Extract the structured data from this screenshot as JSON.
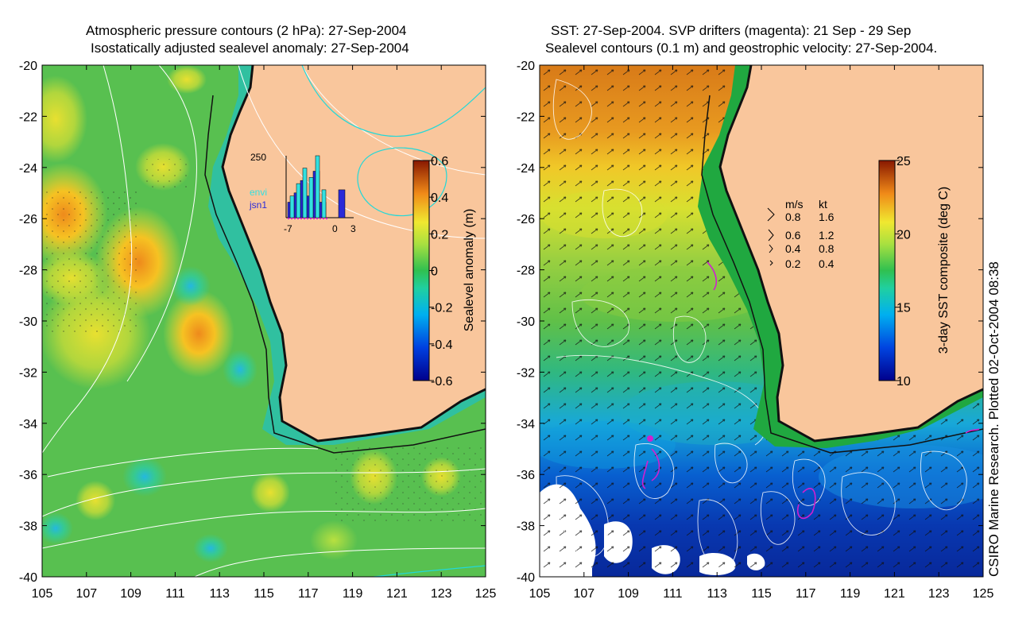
{
  "left_panel": {
    "title_line1": "Atmospheric pressure contours (2 hPa): 27-Sep-2004",
    "title_line2": "Isostatically adjusted sealevel anomaly: 27-Sep-2004",
    "colorbar": {
      "label": "Sealevel anomaly (m)",
      "ticks": [
        "0.6",
        "0.4",
        "0.2",
        "0",
        "-0.2",
        "-0.4",
        "-0.6"
      ]
    },
    "histogram": {
      "ymax_label": "250",
      "x_ticks": [
        "-7",
        "0",
        "3"
      ],
      "legend": [
        "envi",
        "jsn1"
      ],
      "legend_colors": [
        "#33e0e0",
        "#2a2ad8"
      ],
      "bins_cyan": [
        0.35,
        0.55,
        0.8,
        0.65,
        1.0,
        0.45
      ],
      "bins_blue": [
        0.25,
        0.4,
        0.6,
        0.35,
        0.75,
        0.25,
        0,
        0,
        0.45
      ]
    }
  },
  "right_panel": {
    "title_line1": "SST: 27-Sep-2004. SVP drifters (magenta): 21 Sep - 29 Sep",
    "title_line2": "Sealevel contours (0.1 m) and geostrophic velocity: 27-Sep-2004.",
    "colorbar": {
      "label": "3-day SST composite (deg C)",
      "ticks": [
        "25",
        "20",
        "15",
        "10"
      ]
    },
    "velocity_legend": {
      "header_ms": "m/s",
      "header_kt": "kt",
      "rows": [
        {
          "ms": "0.8",
          "kt": "1.6"
        },
        {
          "ms": "0.6",
          "kt": "1.2"
        },
        {
          "ms": "0.4",
          "kt": "0.8"
        },
        {
          "ms": "0.2",
          "kt": "0.4"
        }
      ]
    }
  },
  "axes": {
    "y_ticks": [
      "-20",
      "-22",
      "-24",
      "-26",
      "-28",
      "-30",
      "-32",
      "-34",
      "-36",
      "-38",
      "-40"
    ],
    "x_ticks": [
      "105",
      "107",
      "109",
      "111",
      "113",
      "115",
      "117",
      "119",
      "121",
      "123",
      "125"
    ]
  },
  "credit": "CSIRO Marine Research. Plotted 02-Oct-2004 08:38",
  "colors": {
    "land": "#f9c69c",
    "coast": "#111111",
    "drifter": "#d020d0"
  }
}
